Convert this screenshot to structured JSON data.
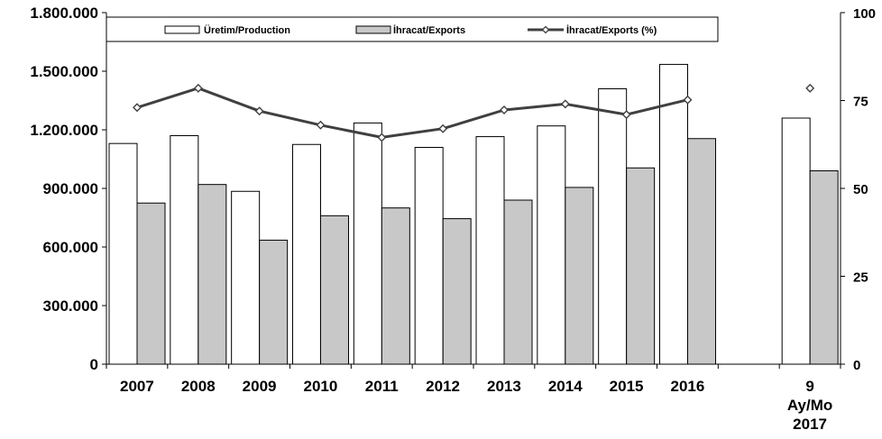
{
  "chart_data": {
    "type": "bar",
    "categories": [
      "2007",
      "2008",
      "2009",
      "2010",
      "2011",
      "2012",
      "2013",
      "2014",
      "2015",
      "2016",
      "",
      "9 Ay/Mo 2017"
    ],
    "category_lines": [
      [
        "2007"
      ],
      [
        "2008"
      ],
      [
        "2009"
      ],
      [
        "2010"
      ],
      [
        "2011"
      ],
      [
        "2012"
      ],
      [
        "2013"
      ],
      [
        "2014"
      ],
      [
        "2015"
      ],
      [
        "2016"
      ],
      [],
      [
        "9",
        "Ay/Mo",
        "2017"
      ]
    ],
    "series": [
      {
        "name": "Üretim/Production",
        "kind": "bar",
        "axis": "left",
        "color": "#ffffff",
        "values": [
          1130000,
          1170000,
          885000,
          1125000,
          1235000,
          1110000,
          1165000,
          1220000,
          1410000,
          1535000,
          null,
          1260000
        ]
      },
      {
        "name": "İhracat/Exports",
        "kind": "bar",
        "axis": "left",
        "color": "#c8c8c8",
        "values": [
          825000,
          920000,
          635000,
          760000,
          800000,
          745000,
          840000,
          905000,
          1005000,
          1155000,
          null,
          990000
        ]
      },
      {
        "name": "İhracat/Exports (%)",
        "kind": "line",
        "axis": "right",
        "color": "#404040",
        "values": [
          73,
          78.5,
          72,
          68,
          64.5,
          67,
          72.3,
          74,
          71,
          75.2,
          null,
          78.5
        ]
      }
    ],
    "yaxis_left": {
      "min": 0,
      "max": 1800000,
      "ticks": [
        0,
        300000,
        600000,
        900000,
        1200000,
        1500000,
        1800000
      ],
      "tick_labels": [
        "0",
        "300.000",
        "600.000",
        "900.000",
        "1.200.000",
        "1.500.000",
        "1.800.000"
      ]
    },
    "yaxis_right": {
      "min": 0,
      "max": 100,
      "ticks": [
        0,
        25,
        50,
        75,
        100
      ],
      "tick_labels": [
        "0",
        "25",
        "50",
        "75",
        "100"
      ]
    },
    "title": "",
    "xlabel": "",
    "ylabel": "",
    "legend_position": "top",
    "grid": false
  }
}
